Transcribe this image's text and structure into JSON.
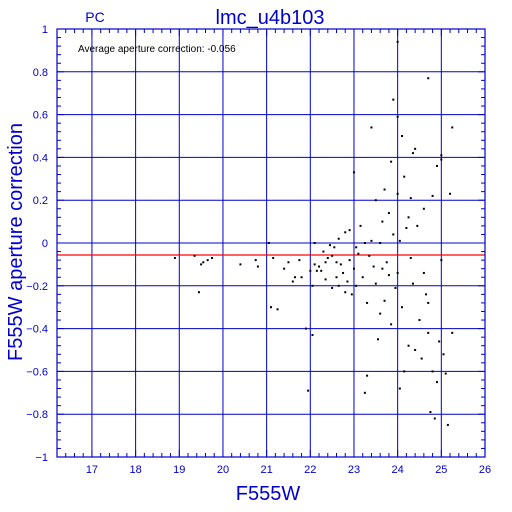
{
  "header": {
    "detector": "PC",
    "title": "lmc_u4b103"
  },
  "annotation": "Average aperture correction: -0.056",
  "colors": {
    "frame": "#0000cc",
    "axis_text": "#0000cc",
    "reference_line": "#ff0000",
    "points": "#000000",
    "background": "#ffffff"
  },
  "chart_data": {
    "type": "scatter",
    "title": "lmc_u4b103",
    "xlabel": "F555W",
    "ylabel": "F555W aperture correction",
    "xlim": [
      16.2,
      26.0
    ],
    "ylim": [
      -1.0,
      1.0
    ],
    "x_ticks": [
      17,
      18,
      19,
      20,
      21,
      22,
      23,
      24,
      25,
      26
    ],
    "y_ticks": [
      1,
      0.8,
      0.6,
      0.4,
      0.2,
      0,
      -0.2,
      -0.4,
      -0.6,
      -0.8,
      -1
    ],
    "x_tick_labels": [
      "17",
      "18",
      "19",
      "20",
      "21",
      "22",
      "23",
      "24",
      "25",
      "26"
    ],
    "y_tick_labels": [
      "1",
      "0.8",
      "0.6",
      "0.4",
      "0.2",
      "0",
      "−0.2",
      "−0.4",
      "−0.6",
      "−0.8",
      "−1"
    ],
    "grid": true,
    "reference_line": {
      "y": -0.056
    },
    "points": [
      [
        18.9,
        -0.07
      ],
      [
        19.35,
        -0.06
      ],
      [
        19.45,
        -0.23
      ],
      [
        19.5,
        -0.1
      ],
      [
        19.55,
        -0.09
      ],
      [
        19.65,
        -0.08
      ],
      [
        19.75,
        -0.07
      ],
      [
        20.4,
        -0.1
      ],
      [
        20.75,
        -0.08
      ],
      [
        20.8,
        -0.11
      ],
      [
        21.05,
        0.0
      ],
      [
        21.1,
        -0.3
      ],
      [
        21.15,
        -0.07
      ],
      [
        21.25,
        -0.31
      ],
      [
        21.4,
        -0.12
      ],
      [
        21.5,
        -0.09
      ],
      [
        21.6,
        -0.18
      ],
      [
        21.65,
        -0.16
      ],
      [
        21.75,
        -0.08
      ],
      [
        21.8,
        -0.16
      ],
      [
        21.9,
        -0.4
      ],
      [
        21.95,
        -0.69
      ],
      [
        22.0,
        -0.13
      ],
      [
        22.05,
        -0.2
      ],
      [
        22.05,
        -0.43
      ],
      [
        22.1,
        0.0
      ],
      [
        22.1,
        -0.1
      ],
      [
        22.15,
        -0.13
      ],
      [
        22.2,
        -0.11
      ],
      [
        22.25,
        -0.13
      ],
      [
        22.3,
        -0.04
      ],
      [
        22.35,
        -0.09
      ],
      [
        22.35,
        -0.17
      ],
      [
        22.4,
        -0.07
      ],
      [
        22.45,
        -0.01
      ],
      [
        22.5,
        -0.06
      ],
      [
        22.5,
        -0.21
      ],
      [
        22.55,
        -0.02
      ],
      [
        22.6,
        -0.09
      ],
      [
        22.6,
        -0.16
      ],
      [
        22.65,
        0.02
      ],
      [
        22.65,
        -0.2
      ],
      [
        22.7,
        -0.1
      ],
      [
        22.75,
        -0.14
      ],
      [
        22.8,
        0.05
      ],
      [
        22.8,
        -0.23
      ],
      [
        22.85,
        -0.18
      ],
      [
        22.9,
        0.06
      ],
      [
        22.9,
        -0.08
      ],
      [
        22.95,
        -0.24
      ],
      [
        23.0,
        0.33
      ],
      [
        23.0,
        -0.12
      ],
      [
        23.05,
        -0.02
      ],
      [
        23.05,
        -0.2
      ],
      [
        23.1,
        -0.05
      ],
      [
        23.15,
        0.08
      ],
      [
        23.2,
        -0.16
      ],
      [
        23.25,
        0.0
      ],
      [
        23.3,
        -0.28
      ],
      [
        23.3,
        -0.62
      ],
      [
        23.35,
        -0.06
      ],
      [
        23.4,
        0.54
      ],
      [
        23.4,
        0.01
      ],
      [
        23.45,
        -0.11
      ],
      [
        23.5,
        0.2
      ],
      [
        23.5,
        -0.19
      ],
      [
        23.55,
        -0.45
      ],
      [
        23.6,
        0.0
      ],
      [
        23.6,
        -0.33
      ],
      [
        23.65,
        0.1
      ],
      [
        23.65,
        -0.12
      ],
      [
        23.7,
        0.25
      ],
      [
        23.7,
        -0.27
      ],
      [
        23.75,
        -0.09
      ],
      [
        23.8,
        0.14
      ],
      [
        23.8,
        -0.15
      ],
      [
        23.85,
        -0.38
      ],
      [
        23.9,
        0.67
      ],
      [
        23.9,
        0.04
      ],
      [
        23.95,
        -0.21
      ],
      [
        24.0,
        0.59
      ],
      [
        24.0,
        0.23
      ],
      [
        24.0,
        -0.14
      ],
      [
        24.05,
        0.01
      ],
      [
        24.05,
        -0.68
      ],
      [
        24.1,
        0.5
      ],
      [
        24.1,
        -0.3
      ],
      [
        24.15,
        0.31
      ],
      [
        24.15,
        -0.6
      ],
      [
        24.2,
        0.07
      ],
      [
        24.25,
        -0.48
      ],
      [
        24.3,
        0.21
      ],
      [
        24.3,
        -0.07
      ],
      [
        24.35,
        -0.19
      ],
      [
        24.4,
        0.44
      ],
      [
        24.4,
        -0.5
      ],
      [
        24.45,
        0.08
      ],
      [
        24.5,
        -0.36
      ],
      [
        24.55,
        -0.54
      ],
      [
        24.6,
        0.16
      ],
      [
        24.6,
        -0.14
      ],
      [
        24.65,
        -0.24
      ],
      [
        24.7,
        0.77
      ],
      [
        24.7,
        -0.42
      ],
      [
        24.75,
        -0.79
      ],
      [
        24.8,
        0.22
      ],
      [
        24.8,
        -0.6
      ],
      [
        24.85,
        -0.82
      ],
      [
        24.9,
        0.36
      ],
      [
        24.9,
        -0.65
      ],
      [
        24.95,
        -0.46
      ],
      [
        25.0,
        0.41
      ],
      [
        25.0,
        -0.08
      ],
      [
        25.05,
        -0.52
      ],
      [
        25.1,
        -0.61
      ],
      [
        25.15,
        -0.85
      ],
      [
        25.2,
        0.23
      ],
      [
        25.25,
        0.54
      ],
      [
        25.25,
        -0.42
      ],
      [
        24.0,
        0.94
      ],
      [
        23.85,
        0.38
      ],
      [
        24.25,
        0.12
      ],
      [
        24.35,
        0.42
      ],
      [
        25.0,
        0.39
      ],
      [
        23.25,
        -0.7
      ],
      [
        24.7,
        -0.28
      ]
    ]
  }
}
